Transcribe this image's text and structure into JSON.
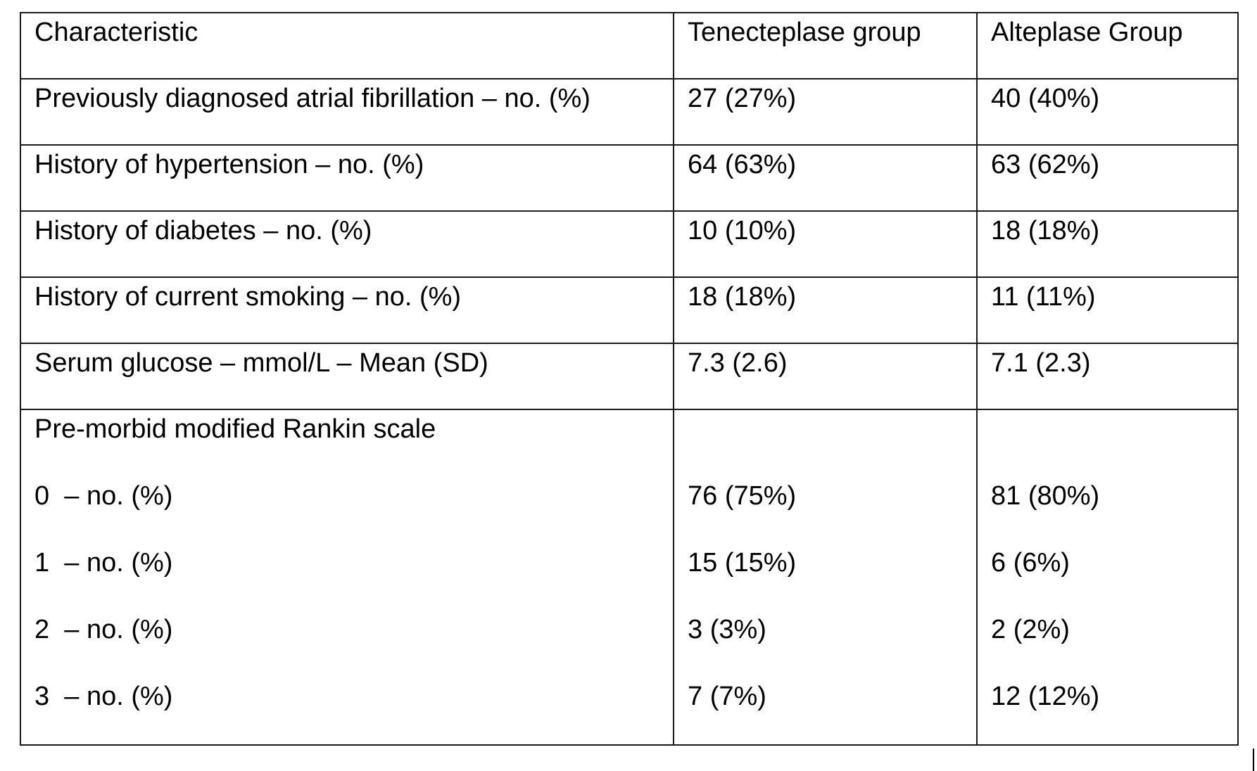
{
  "table": {
    "header": {
      "characteristic": "Characteristic",
      "tenecteplase": "Tenecteplase group",
      "alteplase": "Alteplase Group"
    },
    "rows": [
      {
        "label": "Previously diagnosed atrial fibrillation – no. (%)",
        "tenecteplase": "27 (27%)",
        "alteplase": "40 (40%)"
      },
      {
        "label": "History of hypertension – no. (%)",
        "tenecteplase": "64 (63%)",
        "alteplase": "63 (62%)"
      },
      {
        "label": "History of diabetes – no. (%)",
        "tenecteplase": "10 (10%)",
        "alteplase": "18 (18%)"
      },
      {
        "label": "History of current smoking – no. (%)",
        "tenecteplase": "18 (18%)",
        "alteplase": "11 (11%)"
      },
      {
        "label": "Serum glucose – mmol/L – Mean (SD)",
        "tenecteplase": "7.3 (2.6)",
        "alteplase": "7.1 (2.3)"
      }
    ],
    "rankin": {
      "title": "Pre-morbid modified Rankin scale",
      "items": [
        {
          "label": "0  – no. (%)",
          "tenecteplase": "76 (75%)",
          "alteplase": "81 (80%)"
        },
        {
          "label": "1  – no. (%)",
          "tenecteplase": "15 (15%)",
          "alteplase": "6 (6%)"
        },
        {
          "label": "2  – no. (%)",
          "tenecteplase": "3 (3%)",
          "alteplase": "2 (2%)"
        },
        {
          "label": "3  – no. (%)",
          "tenecteplase": "7 (7%)",
          "alteplase": "12 (12%)"
        }
      ]
    }
  }
}
